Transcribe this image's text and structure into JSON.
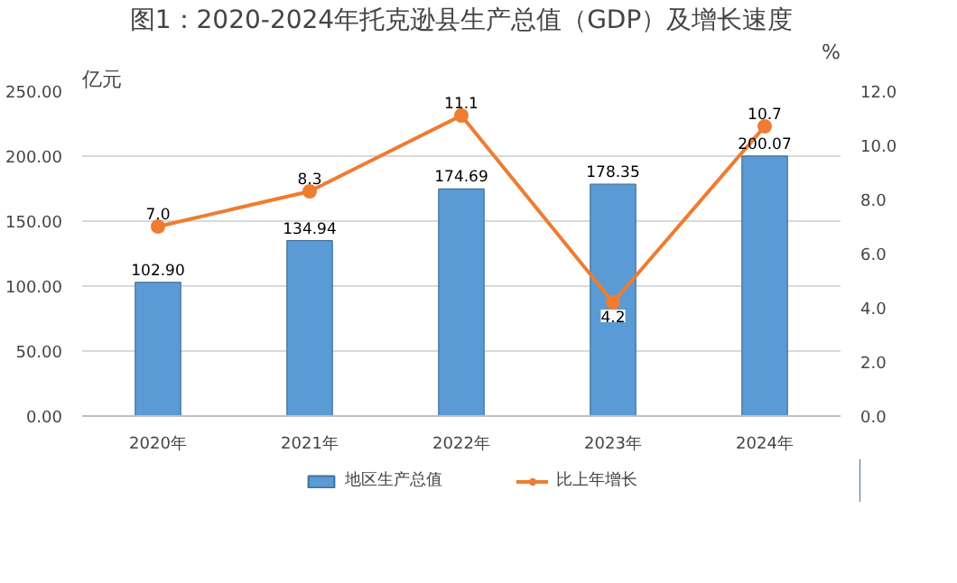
{
  "chart_data": {
    "type": "bar",
    "title": "图1：2020-2024年托克逊县生产总值（GDP）及增长速度",
    "ylabel": "亿元",
    "y2label": "%",
    "categories": [
      "2020年",
      "2021年",
      "2022年",
      "2023年",
      "2024年"
    ],
    "series": [
      {
        "name": "地区生产总值",
        "color": "#5b9bd5",
        "values": [
          102.9,
          134.94,
          174.69,
          178.35,
          200.07
        ],
        "value_labels": [
          "102.90",
          "134.94",
          "174.69",
          "178.35",
          "200.07"
        ]
      },
      {
        "name": "比上年增长",
        "type": "line",
        "axis": "y2",
        "color": "#ed7d31",
        "marker": "circle",
        "values": [
          7.0,
          8.3,
          11.1,
          4.2,
          10.7
        ],
        "value_labels": [
          "7.0",
          "8.3",
          "11.1",
          "4.2",
          "10.7"
        ]
      }
    ],
    "ylim": [
      0,
      250
    ],
    "yticks": [
      {
        "value": 0,
        "label": "0.00"
      },
      {
        "value": 50,
        "label": "50.00"
      },
      {
        "value": 100,
        "label": "100.00"
      },
      {
        "value": 150,
        "label": "150.00"
      },
      {
        "value": 200,
        "label": "200.00"
      },
      {
        "value": 250,
        "label": "250.00"
      }
    ],
    "y2lim": [
      0,
      12
    ],
    "y2ticks": [
      {
        "value": 0,
        "label": "0.0"
      },
      {
        "value": 2,
        "label": "2.0"
      },
      {
        "value": 4,
        "label": "4.0"
      },
      {
        "value": 6,
        "label": "6.0"
      },
      {
        "value": 8,
        "label": "8.0"
      },
      {
        "value": 10,
        "label": "10.0"
      },
      {
        "value": 12,
        "label": "12.0"
      }
    ],
    "grid": "y",
    "legend": "bottom"
  }
}
